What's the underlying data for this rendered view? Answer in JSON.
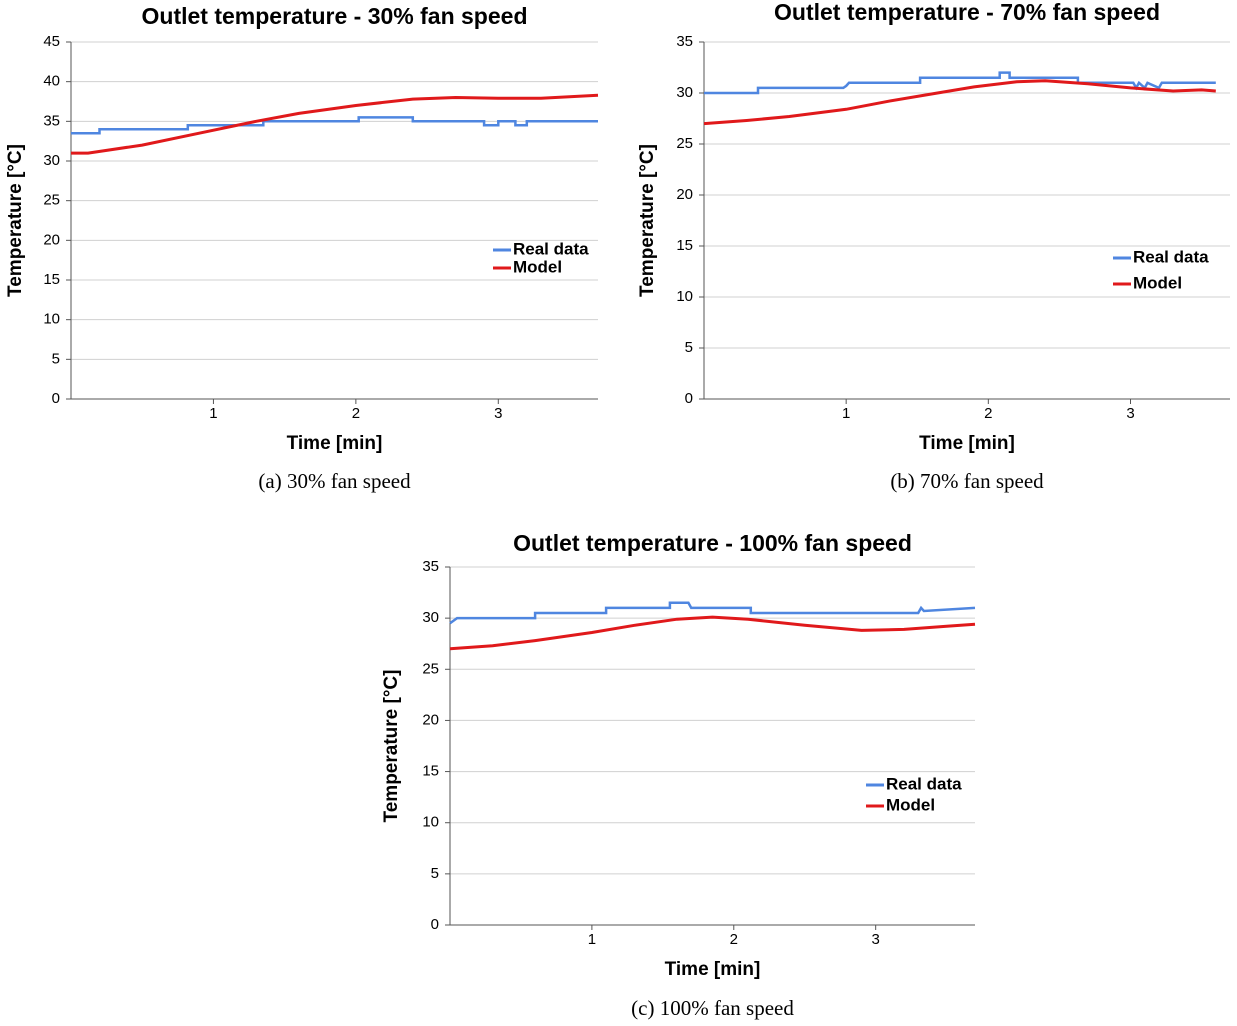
{
  "chart_data": [
    {
      "type": "line",
      "title": "Outlet temperature - 30% fan speed",
      "xlabel": "Time [min]",
      "ylabel": "Temperature [°C]",
      "caption": "(a) 30% fan speed",
      "xlim": [
        0,
        3.7
      ],
      "xticks": [
        1,
        2,
        3
      ],
      "ylim": [
        0,
        45
      ],
      "yticks": [
        0,
        5,
        10,
        15,
        20,
        25,
        30,
        35,
        40,
        45
      ],
      "grid": true,
      "legend": "right",
      "series": [
        {
          "name": "Real data",
          "color": "#4f86e0",
          "x": [
            0,
            0.2,
            0.2,
            0.82,
            0.82,
            1.35,
            1.35,
            2.02,
            2.02,
            2.4,
            2.4,
            2.9,
            2.9,
            3.0,
            3.0,
            3.12,
            3.12,
            3.2,
            3.2,
            3.7
          ],
          "values": [
            33.5,
            33.5,
            34,
            34,
            34.5,
            34.5,
            35,
            35,
            35.5,
            35.5,
            35,
            35,
            34.5,
            34.5,
            35,
            35,
            34.5,
            34.5,
            35,
            35
          ]
        },
        {
          "name": "Model",
          "color": "#e0191b",
          "x": [
            0,
            0.12,
            0.5,
            0.9,
            1.3,
            1.6,
            2.0,
            2.4,
            2.7,
            3.0,
            3.3,
            3.7
          ],
          "values": [
            31,
            31,
            32,
            33.5,
            35,
            36,
            37,
            37.8,
            38,
            37.9,
            37.9,
            38.3
          ]
        }
      ]
    },
    {
      "type": "line",
      "title": "Outlet temperature - 70% fan speed",
      "xlabel": "Time [min]",
      "ylabel": "Temperature [°C]",
      "caption": "(b) 70% fan speed",
      "xlim": [
        0,
        3.7
      ],
      "xticks": [
        1,
        2,
        3
      ],
      "ylim": [
        0,
        35
      ],
      "yticks": [
        0,
        5,
        10,
        15,
        20,
        25,
        30,
        35
      ],
      "grid": true,
      "legend": "right",
      "series": [
        {
          "name": "Real data",
          "color": "#4f86e0",
          "x": [
            0,
            0.38,
            0.38,
            0.98,
            1.0,
            1.02,
            1.52,
            1.52,
            2.08,
            2.08,
            2.15,
            2.15,
            2.63,
            2.63,
            3.02,
            3.04,
            3.06,
            3.1,
            3.12,
            3.2,
            3.22,
            3.6
          ],
          "values": [
            30,
            30,
            30.5,
            30.5,
            30.7,
            31,
            31,
            31.5,
            31.5,
            32,
            32,
            31.5,
            31.5,
            31,
            31,
            30.5,
            31,
            30.5,
            31,
            30.5,
            31,
            31
          ]
        },
        {
          "name": "Model",
          "color": "#e0191b",
          "x": [
            0,
            0.3,
            0.6,
            1.0,
            1.3,
            1.6,
            1.9,
            2.2,
            2.4,
            2.7,
            3.0,
            3.3,
            3.5,
            3.6
          ],
          "values": [
            27,
            27.3,
            27.7,
            28.4,
            29.2,
            29.9,
            30.6,
            31.1,
            31.2,
            30.9,
            30.5,
            30.2,
            30.3,
            30.2
          ]
        }
      ]
    },
    {
      "type": "line",
      "title": "Outlet temperature - 100% fan speed",
      "xlabel": "Time [min]",
      "ylabel": "Temperature [°C]",
      "caption": "(c) 100% fan speed",
      "xlim": [
        0,
        3.7
      ],
      "xticks": [
        1,
        2,
        3
      ],
      "ylim": [
        0,
        35
      ],
      "yticks": [
        0,
        5,
        10,
        15,
        20,
        25,
        30,
        35
      ],
      "grid": true,
      "legend": "right",
      "series": [
        {
          "name": "Real data",
          "color": "#4f86e0",
          "x": [
            0,
            0.05,
            0.6,
            0.6,
            1.1,
            1.1,
            1.55,
            1.55,
            1.68,
            1.7,
            1.72,
            2.12,
            2.12,
            3.3,
            3.32,
            3.34,
            3.7
          ],
          "values": [
            29.5,
            30,
            30,
            30.5,
            30.5,
            31,
            31,
            31.5,
            31.5,
            31,
            31,
            31,
            30.5,
            30.5,
            31,
            30.7,
            31
          ]
        },
        {
          "name": "Model",
          "color": "#e0191b",
          "x": [
            0,
            0.3,
            0.6,
            1.0,
            1.3,
            1.6,
            1.85,
            2.1,
            2.5,
            2.9,
            3.2,
            3.5,
            3.7
          ],
          "values": [
            27,
            27.3,
            27.8,
            28.6,
            29.3,
            29.9,
            30.1,
            29.9,
            29.3,
            28.8,
            28.9,
            29.2,
            29.4
          ]
        }
      ]
    }
  ]
}
